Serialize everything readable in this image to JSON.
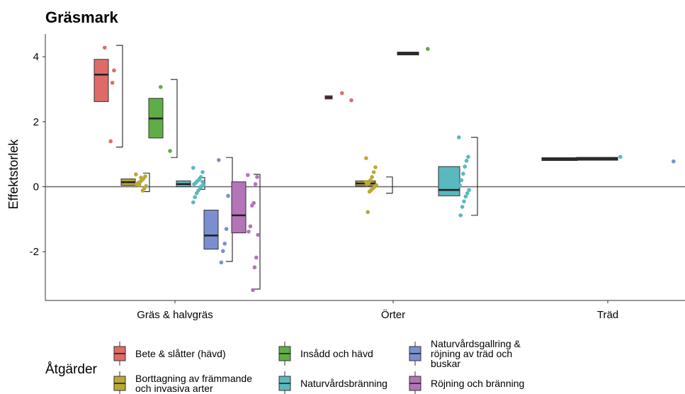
{
  "chart_data": {
    "type": "boxplot",
    "title": "Gräsmark",
    "xlabel": "",
    "ylabel": "Effektstorlek",
    "ylim": [
      -3.5,
      4.7
    ],
    "yticks": [
      -2,
      0,
      2,
      4
    ],
    "ytick_labels": [
      "-2",
      "0",
      "2",
      "4"
    ],
    "grid": false,
    "reference_line_y": 0,
    "categories": [
      "Gräs & halvgräs",
      "Örter",
      "Träd"
    ],
    "legend_position": "bottom",
    "legend": {
      "title": "Åtgärder",
      "entries": [
        {
          "key": "bete",
          "lines": [
            "Bete & slåtter (hävd)"
          ]
        },
        {
          "key": "borttagning",
          "lines": [
            "Borttagning av främmande",
            "och invasiva arter"
          ]
        },
        {
          "key": "insadd",
          "lines": [
            "Insådd och hävd"
          ]
        },
        {
          "key": "naturvardsbranning",
          "lines": [
            "Naturvårdsbränning"
          ]
        },
        {
          "key": "gallring",
          "lines": [
            "Naturvårdsgallring &",
            "röjning av träd och",
            "buskar"
          ]
        },
        {
          "key": "rojning",
          "lines": [
            "Röjning och bränning"
          ]
        }
      ]
    },
    "series": [
      {
        "key": "bete",
        "color": "#e06b66",
        "groups": [
          {
            "category": "Gräs & halvgräs",
            "box": {
              "q1": 2.62,
              "median": 3.45,
              "q3": 3.92
            },
            "whisker": [
              1.22,
              4.35
            ],
            "points": [
              4.28,
              3.58,
              3.2,
              1.4
            ]
          },
          {
            "category": "Örter",
            "box": {
              "q1": 2.7,
              "median": 2.75,
              "q3": 2.8
            },
            "whisker": [
              2.7,
              2.8
            ],
            "points": [
              2.88,
              2.66
            ]
          }
        ]
      },
      {
        "key": "borttagning",
        "color": "#bba936",
        "groups": [
          {
            "category": "Gräs & halvgräs",
            "box": {
              "q1": 0.04,
              "median": 0.14,
              "q3": 0.24
            },
            "whisker": [
              -0.15,
              0.42
            ],
            "points": [
              0.38,
              0.32,
              0.25,
              0.2,
              0.15,
              0.12,
              0.08,
              0.02,
              -0.05,
              -0.12,
              0.28,
              0.05
            ]
          },
          {
            "category": "Örter",
            "box": {
              "q1": 0.02,
              "median": 0.1,
              "q3": 0.18
            },
            "whisker": [
              -0.2,
              0.3
            ],
            "points": [
              0.88,
              0.6,
              0.45,
              0.3,
              0.2,
              0.12,
              0.08,
              0.05,
              0.0,
              -0.05,
              -0.1,
              -0.15,
              -0.78,
              0.15
            ]
          }
        ]
      },
      {
        "key": "insadd",
        "color": "#5fad46",
        "groups": [
          {
            "category": "Gräs & halvgräs",
            "box": {
              "q1": 1.5,
              "median": 2.1,
              "q3": 2.72
            },
            "whisker": [
              0.9,
              3.3
            ],
            "points": [
              3.07,
              1.1
            ]
          },
          {
            "category": "Örter",
            "box": {
              "q1": 4.1,
              "median": 4.1,
              "q3": 4.1
            },
            "whisker": [
              4.1,
              4.1
            ],
            "points": [
              4.24
            ]
          }
        ]
      },
      {
        "key": "naturvardsbranning",
        "color": "#5ab8bf",
        "groups": [
          {
            "category": "Gräs & halvgräs",
            "box": {
              "q1": 0.0,
              "median": 0.08,
              "q3": 0.18
            },
            "whisker": [
              -0.08,
              0.28
            ],
            "points": [
              0.58,
              0.45,
              0.3,
              0.22,
              0.18,
              0.12,
              0.08,
              0.05,
              0.02,
              -0.02,
              -0.12,
              -0.2,
              -0.32,
              -0.48,
              0.15,
              0.0
            ]
          },
          {
            "category": "Örter",
            "box": {
              "q1": -0.28,
              "median": -0.1,
              "q3": 0.62
            },
            "whisker": [
              -0.88,
              1.52
            ],
            "points": [
              1.52,
              0.92,
              0.8,
              0.62,
              0.4,
              0.2,
              0.05,
              -0.1,
              -0.2,
              -0.3,
              -0.45,
              -0.62,
              -0.88
            ]
          }
        ]
      },
      {
        "key": "gallring",
        "color": "#7b8fd0",
        "groups": [
          {
            "category": "Gräs & halvgräs",
            "box": {
              "q1": -1.92,
              "median": -1.5,
              "q3": -0.72
            },
            "whisker": [
              -2.3,
              0.9
            ],
            "points": [
              0.82,
              -0.28,
              -1.3,
              -1.75,
              -1.98,
              -2.33
            ]
          },
          {
            "category": "Träd",
            "box": {
              "q1": 0.85,
              "median": 0.85,
              "q3": 0.85
            },
            "whisker": [
              0.85,
              0.85
            ],
            "points": [
              0.78
            ]
          }
        ]
      },
      {
        "key": "rojning",
        "color": "#b374b8",
        "groups": [
          {
            "category": "Gräs & halvgräs",
            "box": {
              "q1": -1.42,
              "median": -0.88,
              "q3": 0.15
            },
            "whisker": [
              -3.15,
              0.38
            ],
            "points": [
              0.36,
              0.3,
              0.08,
              -0.5,
              -0.58,
              -1.22,
              -1.38,
              -1.48,
              -2.18,
              -2.48,
              -3.18
            ]
          }
        ]
      },
      {
        "key": "tree_extra",
        "color": "#5ab8bf",
        "groups": [
          {
            "category": "Träd",
            "box": {
              "q1": 0.83,
              "median": 0.86,
              "q3": 0.89
            },
            "whisker": [
              0.83,
              0.89
            ],
            "points": [
              0.92
            ]
          }
        ]
      }
    ]
  }
}
